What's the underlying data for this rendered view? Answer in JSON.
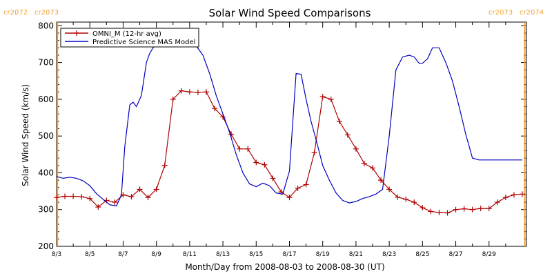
{
  "chart_data": {
    "type": "line",
    "title": "Solar Wind Speed Comparisons",
    "xlabel": "Month/Day from 2008-08-03 to 2008-08-30 (UT)",
    "ylabel": "Solar Wind Speed (km/s)",
    "xlim": [
      0,
      28.25
    ],
    "ylim": [
      200,
      810
    ],
    "x_ticks": [
      {
        "x": 0,
        "label": "8/3"
      },
      {
        "x": 2,
        "label": "8/5"
      },
      {
        "x": 4,
        "label": "8/7"
      },
      {
        "x": 6,
        "label": "8/9"
      },
      {
        "x": 8,
        "label": "8/11"
      },
      {
        "x": 10,
        "label": "8/13"
      },
      {
        "x": 12,
        "label": "8/15"
      },
      {
        "x": 14,
        "label": "8/17"
      },
      {
        "x": 16,
        "label": "8/19"
      },
      {
        "x": 18,
        "label": "8/21"
      },
      {
        "x": 20,
        "label": "8/23"
      },
      {
        "x": 22,
        "label": "8/25"
      },
      {
        "x": 24,
        "label": "8/27"
      },
      {
        "x": 26,
        "label": "8/29"
      }
    ],
    "y_ticks": [
      200,
      300,
      400,
      500,
      600,
      700,
      800
    ],
    "markers": [
      {
        "x": 0.05,
        "left_label": "cr2072",
        "right_label": "cr2073",
        "label_side": "left",
        "color": "#f0a030"
      },
      {
        "x": 28.15,
        "left_label": "cr2073",
        "right_label": "cr2074",
        "label_side": "right",
        "color": "#f0a030"
      }
    ],
    "legend": {
      "position": "top-left"
    },
    "series": [
      {
        "name": "OMNI_M (12-hr avg)",
        "color": "#b00000",
        "marker": "plus",
        "x": [
          0,
          0.5,
          1,
          1.5,
          2,
          2.5,
          3,
          3.5,
          4,
          4.5,
          5,
          5.5,
          6,
          6.5,
          7,
          7.5,
          8,
          8.5,
          9,
          9.5,
          10,
          10.5,
          11,
          11.5,
          12,
          12.5,
          13,
          13.5,
          14,
          14.5,
          15,
          15.5,
          16,
          16.5,
          17,
          17.5,
          18,
          18.5,
          19,
          19.5,
          20,
          20.5,
          21,
          21.5,
          22,
          22.5,
          23,
          23.5,
          24,
          24.5,
          25,
          25.5,
          26,
          26.5,
          27,
          27.5,
          28
        ],
        "y": [
          333,
          336,
          336,
          335,
          330,
          307,
          325,
          320,
          340,
          335,
          355,
          333,
          355,
          420,
          600,
          623,
          620,
          619,
          620,
          575,
          552,
          505,
          465,
          465,
          428,
          422,
          385,
          348,
          333,
          358,
          368,
          455,
          607,
          600,
          540,
          503,
          465,
          425,
          413,
          380,
          355,
          334,
          328,
          320,
          305,
          295,
          292,
          291,
          300,
          302,
          300,
          303,
          303,
          320,
          333,
          340,
          342
        ]
      },
      {
        "name": "Predictive Science MAS Model",
        "color": "#0000c0",
        "marker": "none",
        "x": [
          0,
          0.4,
          0.8,
          1.2,
          1.6,
          2.0,
          2.4,
          2.8,
          3.2,
          3.6,
          3.9,
          4.1,
          4.4,
          4.6,
          4.8,
          5.1,
          5.4,
          5.6,
          5.8,
          6.0,
          6.2,
          6.4,
          6.6,
          7.0,
          7.5,
          8.0,
          8.4,
          8.8,
          9.2,
          9.6,
          10.0,
          10.4,
          10.8,
          11.2,
          11.6,
          12.0,
          12.4,
          12.8,
          13.2,
          13.6,
          14.0,
          14.4,
          14.7,
          15.0,
          15.3,
          15.6,
          16.0,
          16.4,
          16.8,
          17.2,
          17.6,
          18.0,
          18.4,
          18.8,
          19.2,
          19.6,
          20.0,
          20.4,
          20.8,
          21.2,
          21.5,
          21.8,
          22.0,
          22.3,
          22.6,
          23.0,
          23.4,
          23.8,
          24.2,
          24.6,
          25.0,
          25.4,
          25.8,
          26.2,
          26.6,
          27.0,
          27.4,
          28.0
        ],
        "y": [
          390,
          385,
          388,
          385,
          378,
          365,
          343,
          328,
          313,
          310,
          340,
          470,
          585,
          592,
          580,
          610,
          700,
          725,
          740,
          750,
          755,
          755,
          752,
          750,
          755,
          755,
          745,
          720,
          670,
          610,
          560,
          510,
          450,
          400,
          370,
          362,
          372,
          365,
          345,
          342,
          405,
          670,
          668,
          600,
          540,
          490,
          420,
          380,
          345,
          325,
          318,
          322,
          330,
          335,
          342,
          355,
          500,
          680,
          715,
          720,
          715,
          698,
          698,
          710,
          740,
          740,
          700,
          650,
          580,
          505,
          440,
          435,
          435,
          435,
          435,
          435,
          435,
          435
        ]
      }
    ]
  }
}
